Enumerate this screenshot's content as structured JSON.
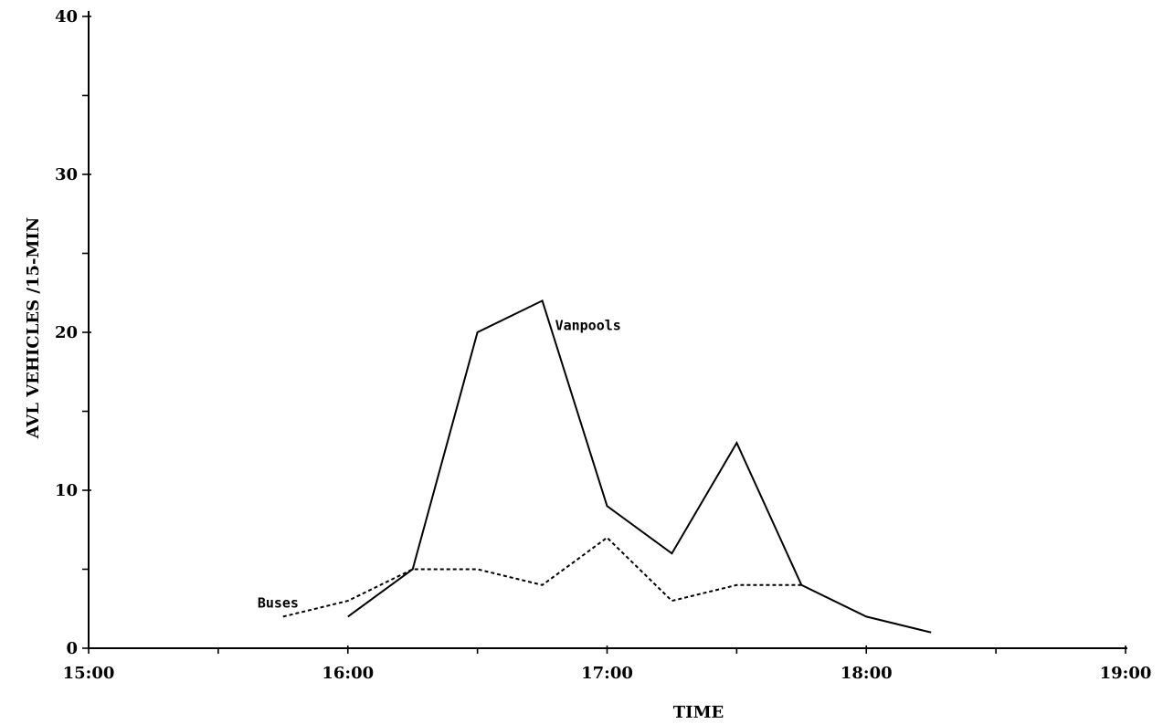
{
  "chart_data": {
    "type": "line",
    "xlabel": "TIME",
    "ylabel": "AVL VEHICLES /15-MIN",
    "xlim": [
      "15:00",
      "19:00"
    ],
    "ylim": [
      0,
      40
    ],
    "x_tick_labels": [
      "15:00",
      "16:00",
      "17:00",
      "18:00",
      "19:00"
    ],
    "y_tick_labels": [
      "0",
      "10",
      "20",
      "30",
      "40"
    ],
    "grid": false,
    "series": [
      {
        "name": "Vanpools",
        "style": "solid",
        "x": [
          "16:00",
          "16:15",
          "16:30",
          "16:45",
          "17:00",
          "17:15",
          "17:30",
          "17:45",
          "18:00",
          "18:15"
        ],
        "values": [
          2,
          5,
          20,
          22,
          9,
          6,
          13,
          4,
          2,
          1
        ]
      },
      {
        "name": "Buses",
        "style": "dotted",
        "x": [
          "15:45",
          "16:00",
          "16:15",
          "16:30",
          "16:45",
          "17:00",
          "17:15",
          "17:30",
          "17:45"
        ],
        "values": [
          2,
          3,
          5,
          5,
          4,
          7,
          3,
          4,
          4
        ]
      }
    ]
  }
}
